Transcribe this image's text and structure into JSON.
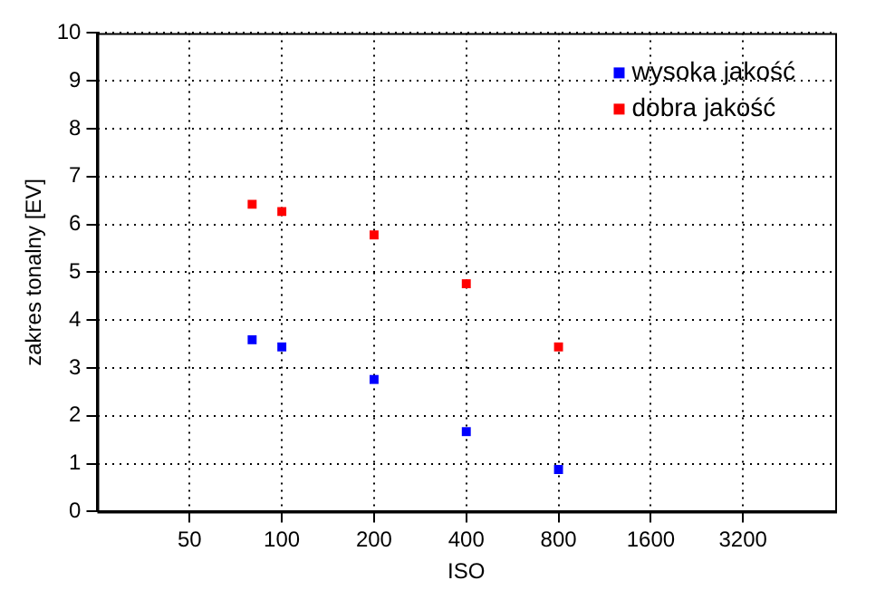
{
  "chart_data": {
    "type": "scatter",
    "xlabel": "ISO",
    "ylabel": "zakres tonalny [EV]",
    "log": "x",
    "xlim": [
      25,
      6400
    ],
    "xticks": [
      50,
      100,
      200,
      400,
      800,
      1600,
      3200
    ],
    "ylim": [
      0,
      10
    ],
    "yticks": [
      0,
      1,
      2,
      3,
      4,
      5,
      6,
      7,
      8,
      9,
      10
    ],
    "grid": true,
    "legend": "top right",
    "marker": "square",
    "series": [
      {
        "name": "wysoka jakość",
        "color": "#0000ff",
        "x": [
          80,
          100,
          200,
          400,
          800
        ],
        "values": [
          3.59,
          3.44,
          2.76,
          1.67,
          0.88
        ]
      },
      {
        "name": "dobra jakość",
        "color": "#ff0000",
        "x": [
          80,
          100,
          200,
          400,
          800
        ],
        "values": [
          6.42,
          6.27,
          5.78,
          4.76,
          3.44
        ]
      }
    ]
  }
}
